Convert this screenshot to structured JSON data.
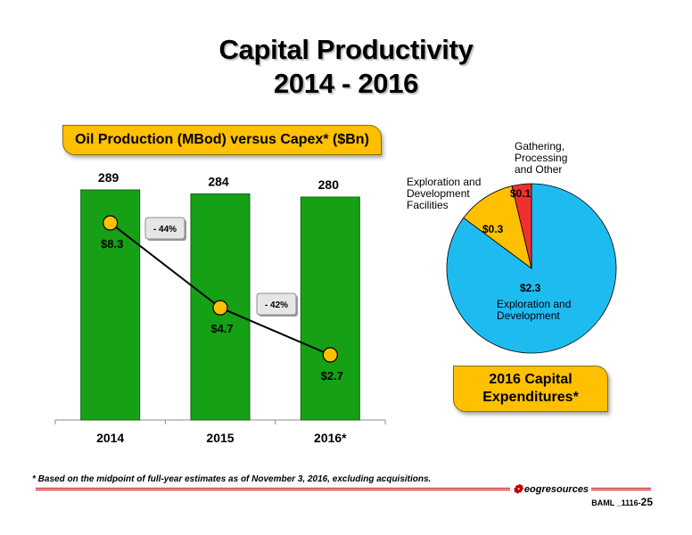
{
  "header": {
    "title_line1": "Capital Productivity",
    "title_line2": "2014 - 2016"
  },
  "bar_badge": "Oil Production (MBod) versus Capex* ($Bn)",
  "pie_badge": {
    "line1": "2016 Capital",
    "line2": "Expenditures*"
  },
  "colors": {
    "bar": "#16a016",
    "marker": "#ffc000",
    "pie_main": "#1ebbf0",
    "pie_facilities": "#ffc000",
    "pie_gathering": "#f03030",
    "badge": "#ffc000",
    "accent_line": "#c00000"
  },
  "chart_data": [
    {
      "type": "bar",
      "title": "Oil Production (MBod) versus Capex* ($Bn)",
      "categories": [
        "2014",
        "2015",
        "2016*"
      ],
      "series": [
        {
          "name": "Oil Production (MBod)",
          "values": [
            289,
            284,
            280
          ],
          "labels": [
            "289",
            "284",
            "280"
          ]
        }
      ],
      "ylim": [
        0,
        300
      ],
      "grid": false
    },
    {
      "type": "line",
      "categories": [
        "2014",
        "2015",
        "2016*"
      ],
      "series": [
        {
          "name": "Capex* ($Bn)",
          "values": [
            8.3,
            4.7,
            2.7
          ],
          "labels": [
            "$8.3",
            "$4.7",
            "$2.7"
          ]
        }
      ],
      "ylim": [
        0,
        10
      ],
      "annotations": [
        "- 44%",
        "- 42%"
      ]
    },
    {
      "type": "pie",
      "title": "2016 Capital Expenditures*",
      "slices": [
        {
          "label": "Exploration and Development",
          "value": 2.3,
          "value_label": "$2.3"
        },
        {
          "label": "Exploration and Development Facilities",
          "value": 0.3,
          "value_label": "$0.3"
        },
        {
          "label": "Gathering, Processing and Other",
          "value": 0.1,
          "value_label": "$0.1"
        }
      ]
    }
  ],
  "pie_labels": {
    "main": [
      "Exploration and",
      "Development"
    ],
    "facilities": [
      "Exploration and",
      "Development",
      "Facilities"
    ],
    "gathering": [
      "Gathering,",
      "Processing",
      "and Other"
    ]
  },
  "footnote": "* Based on the midpoint of full-year estimates as of November 3, 2016, excluding acquisitions.",
  "footer": {
    "logo_text": "eogresources",
    "page_prefix": "BAML _1116-",
    "page_number": "25"
  }
}
